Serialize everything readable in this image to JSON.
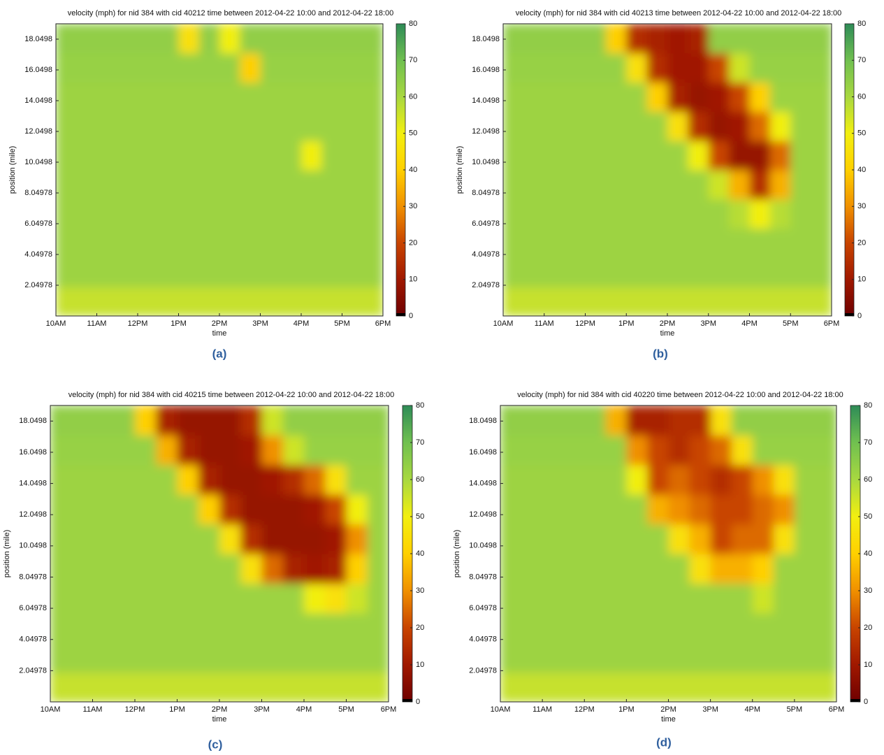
{
  "chart_data": [
    {
      "type": "heatmap",
      "title": "velocity (mph) for nid 384 with cid 40212 time between 2012-04-22 10:00 and 2012-04-22 18:00",
      "xlabel": "time",
      "ylabel": "position (mile)",
      "caption": "(a)",
      "xlim": [
        10,
        18
      ],
      "xticks": [
        {
          "value": 10,
          "label": "10AM"
        },
        {
          "value": 11,
          "label": "11AM"
        },
        {
          "value": 12,
          "label": "12PM"
        },
        {
          "value": 13,
          "label": "1PM"
        },
        {
          "value": 14,
          "label": "2PM"
        },
        {
          "value": 15,
          "label": "3PM"
        },
        {
          "value": 16,
          "label": "4PM"
        },
        {
          "value": 17,
          "label": "5PM"
        },
        {
          "value": 18,
          "label": "6PM"
        }
      ],
      "ylim": [
        0.04978,
        19.04978
      ],
      "yticks": [
        2.04978,
        4.04978,
        6.04978,
        8.04978,
        10.0498,
        12.0498,
        14.0498,
        16.0498,
        18.0498
      ],
      "xbins": [
        10,
        10.5,
        11,
        11.5,
        12,
        12.5,
        13,
        13.5,
        14,
        14.5,
        15,
        15.5,
        16,
        16.5,
        17,
        17.5,
        18
      ],
      "ybins": [
        0.04978,
        1.94978,
        3.84978,
        5.74978,
        7.64978,
        9.54978,
        11.44978,
        13.34978,
        15.24978,
        17.14978,
        19.04978
      ],
      "values": [
        [
          56,
          56,
          56,
          56,
          56,
          56,
          56,
          56,
          56,
          56,
          56,
          56,
          56,
          56,
          56,
          56
        ],
        [
          62,
          62,
          62,
          62,
          62,
          62,
          62,
          62,
          62,
          62,
          62,
          62,
          62,
          62,
          62,
          62
        ],
        [
          62,
          62,
          62,
          62,
          62,
          62,
          62,
          62,
          62,
          62,
          62,
          62,
          62,
          62,
          62,
          62
        ],
        [
          62,
          62,
          62,
          62,
          62,
          62,
          62,
          62,
          62,
          62,
          62,
          62,
          62,
          62,
          62,
          62
        ],
        [
          62,
          62,
          62,
          62,
          62,
          62,
          62,
          62,
          62,
          62,
          62,
          62,
          62,
          62,
          62,
          62
        ],
        [
          62,
          62,
          62,
          62,
          62,
          62,
          62,
          62,
          62,
          62,
          62,
          62,
          50,
          62,
          62,
          62
        ],
        [
          62,
          62,
          62,
          62,
          62,
          62,
          62,
          62,
          62,
          62,
          62,
          62,
          62,
          62,
          62,
          62
        ],
        [
          62,
          62,
          62,
          62,
          62,
          62,
          62,
          62,
          62,
          62,
          62,
          62,
          62,
          62,
          62,
          62
        ],
        [
          63,
          63,
          63,
          63,
          63,
          63,
          63,
          63,
          63,
          40,
          63,
          63,
          63,
          63,
          63,
          63
        ],
        [
          64,
          64,
          64,
          64,
          64,
          64,
          45,
          64,
          50,
          64,
          64,
          64,
          64,
          64,
          64,
          64
        ]
      ],
      "clim": [
        0,
        80
      ],
      "cticks": [
        0,
        10,
        20,
        30,
        40,
        50,
        60,
        70,
        80
      ],
      "colormap": [
        "#6e0000",
        "#a01800",
        "#c84400",
        "#f09000",
        "#ffd000",
        "#f2ef10",
        "#a8d840",
        "#70c050",
        "#2e8b57"
      ]
    },
    {
      "type": "heatmap",
      "title": "velocity (mph) for nid 384 with cid 40213 time between 2012-04-22 10:00 and 2012-04-22 18:00",
      "xlabel": "time",
      "ylabel": "position (mile)",
      "caption": "(b)",
      "xlim": [
        10,
        18
      ],
      "xticks": [
        {
          "value": 10,
          "label": "10AM"
        },
        {
          "value": 11,
          "label": "11AM"
        },
        {
          "value": 12,
          "label": "12PM"
        },
        {
          "value": 13,
          "label": "1PM"
        },
        {
          "value": 14,
          "label": "2PM"
        },
        {
          "value": 15,
          "label": "3PM"
        },
        {
          "value": 16,
          "label": "4PM"
        },
        {
          "value": 17,
          "label": "5PM"
        },
        {
          "value": 18,
          "label": "6PM"
        }
      ],
      "ylim": [
        0.04978,
        19.04978
      ],
      "yticks": [
        2.04978,
        4.04978,
        6.04978,
        8.04978,
        10.0498,
        12.0498,
        14.0498,
        16.0498,
        18.0498
      ],
      "xbins": [
        10,
        10.5,
        11,
        11.5,
        12,
        12.5,
        13,
        13.5,
        14,
        14.5,
        15,
        15.5,
        16,
        16.5,
        17,
        17.5,
        18
      ],
      "ybins": [
        0.04978,
        1.94978,
        3.84978,
        5.74978,
        7.64978,
        9.54978,
        11.44978,
        13.34978,
        15.24978,
        17.14978,
        19.04978
      ],
      "values": [
        [
          56,
          56,
          56,
          56,
          56,
          56,
          56,
          56,
          56,
          56,
          56,
          56,
          56,
          56,
          56,
          56
        ],
        [
          62,
          62,
          62,
          62,
          62,
          62,
          62,
          62,
          62,
          62,
          62,
          62,
          62,
          62,
          62,
          62
        ],
        [
          62,
          62,
          62,
          62,
          62,
          62,
          62,
          62,
          62,
          62,
          62,
          62,
          62,
          62,
          62,
          62
        ],
        [
          62,
          62,
          62,
          62,
          62,
          62,
          62,
          62,
          62,
          62,
          62,
          58,
          50,
          58,
          62,
          62
        ],
        [
          62,
          62,
          62,
          62,
          62,
          62,
          62,
          62,
          62,
          62,
          55,
          35,
          15,
          35,
          62,
          62
        ],
        [
          62,
          62,
          62,
          62,
          62,
          62,
          62,
          62,
          62,
          50,
          20,
          8,
          8,
          25,
          62,
          62
        ],
        [
          62,
          62,
          62,
          62,
          62,
          62,
          62,
          62,
          45,
          15,
          8,
          10,
          25,
          50,
          62,
          62
        ],
        [
          62,
          62,
          62,
          62,
          62,
          62,
          62,
          40,
          12,
          8,
          10,
          20,
          40,
          62,
          62,
          62
        ],
        [
          63,
          63,
          63,
          63,
          63,
          63,
          45,
          15,
          10,
          10,
          20,
          55,
          63,
          63,
          63,
          63
        ],
        [
          64,
          64,
          64,
          64,
          64,
          40,
          15,
          12,
          10,
          12,
          64,
          64,
          64,
          64,
          64,
          64
        ]
      ],
      "clim": [
        0,
        80
      ],
      "cticks": [
        0,
        10,
        20,
        30,
        40,
        50,
        60,
        70,
        80
      ],
      "colormap": [
        "#6e0000",
        "#a01800",
        "#c84400",
        "#f09000",
        "#ffd000",
        "#f2ef10",
        "#a8d840",
        "#70c050",
        "#2e8b57"
      ]
    },
    {
      "type": "heatmap",
      "title": "velocity (mph) for nid 384 with cid 40215 time between 2012-04-22 10:00 and 2012-04-22 18:00",
      "xlabel": "time",
      "ylabel": "position (mile)",
      "caption": "(c)",
      "xlim": [
        10,
        18
      ],
      "xticks": [
        {
          "value": 10,
          "label": "10AM"
        },
        {
          "value": 11,
          "label": "11AM"
        },
        {
          "value": 12,
          "label": "12PM"
        },
        {
          "value": 13,
          "label": "1PM"
        },
        {
          "value": 14,
          "label": "2PM"
        },
        {
          "value": 15,
          "label": "3PM"
        },
        {
          "value": 16,
          "label": "4PM"
        },
        {
          "value": 17,
          "label": "5PM"
        },
        {
          "value": 18,
          "label": "6PM"
        }
      ],
      "ylim": [
        0.04978,
        19.04978
      ],
      "yticks": [
        2.04978,
        4.04978,
        6.04978,
        8.04978,
        10.0498,
        12.0498,
        14.0498,
        16.0498,
        18.0498
      ],
      "xbins": [
        10,
        10.5,
        11,
        11.5,
        12,
        12.5,
        13,
        13.5,
        14,
        14.5,
        15,
        15.5,
        16,
        16.5,
        17,
        17.5,
        18
      ],
      "ybins": [
        0.04978,
        1.94978,
        3.84978,
        5.74978,
        7.64978,
        9.54978,
        11.44978,
        13.34978,
        15.24978,
        17.14978,
        19.04978
      ],
      "values": [
        [
          56,
          56,
          56,
          56,
          56,
          56,
          56,
          56,
          56,
          56,
          56,
          56,
          56,
          56,
          56,
          56
        ],
        [
          62,
          62,
          62,
          62,
          62,
          62,
          62,
          62,
          62,
          62,
          62,
          62,
          62,
          62,
          62,
          62
        ],
        [
          62,
          62,
          62,
          62,
          62,
          62,
          62,
          62,
          62,
          62,
          62,
          62,
          62,
          62,
          62,
          62
        ],
        [
          62,
          62,
          62,
          62,
          62,
          62,
          62,
          62,
          62,
          62,
          62,
          62,
          50,
          45,
          55,
          62
        ],
        [
          62,
          62,
          62,
          62,
          62,
          62,
          62,
          62,
          62,
          45,
          25,
          12,
          10,
          12,
          40,
          62
        ],
        [
          62,
          62,
          62,
          62,
          62,
          62,
          62,
          62,
          45,
          15,
          8,
          8,
          8,
          10,
          30,
          62
        ],
        [
          62,
          62,
          62,
          62,
          62,
          62,
          62,
          40,
          15,
          8,
          8,
          8,
          10,
          20,
          50,
          62
        ],
        [
          62,
          62,
          62,
          62,
          62,
          62,
          40,
          12,
          8,
          8,
          10,
          15,
          25,
          45,
          62,
          62
        ],
        [
          63,
          63,
          63,
          63,
          63,
          35,
          12,
          8,
          8,
          10,
          30,
          55,
          63,
          63,
          63,
          63
        ],
        [
          64,
          64,
          64,
          64,
          40,
          12,
          8,
          8,
          8,
          15,
          55,
          64,
          64,
          64,
          64,
          64
        ]
      ],
      "clim": [
        0,
        80
      ],
      "cticks": [
        0,
        10,
        20,
        30,
        40,
        50,
        60,
        70,
        80
      ],
      "colormap": [
        "#6e0000",
        "#a01800",
        "#c84400",
        "#f09000",
        "#ffd000",
        "#f2ef10",
        "#a8d840",
        "#70c050",
        "#2e8b57"
      ]
    },
    {
      "type": "heatmap",
      "title": "velocity (mph) for nid 384 with cid 40220 time between 2012-04-22 10:00 and 2012-04-22 18:00",
      "xlabel": "time",
      "ylabel": "position (mile)",
      "caption": "(d)",
      "xlim": [
        10,
        18
      ],
      "xticks": [
        {
          "value": 10,
          "label": "10AM"
        },
        {
          "value": 11,
          "label": "11AM"
        },
        {
          "value": 12,
          "label": "12PM"
        },
        {
          "value": 13,
          "label": "1PM"
        },
        {
          "value": 14,
          "label": "2PM"
        },
        {
          "value": 15,
          "label": "3PM"
        },
        {
          "value": 16,
          "label": "4PM"
        },
        {
          "value": 17,
          "label": "5PM"
        },
        {
          "value": 18,
          "label": "6PM"
        }
      ],
      "ylim": [
        0.04978,
        19.04978
      ],
      "yticks": [
        2.04978,
        4.04978,
        6.04978,
        8.04978,
        10.0498,
        12.0498,
        14.0498,
        16.0498,
        18.0498
      ],
      "xbins": [
        10,
        10.5,
        11,
        11.5,
        12,
        12.5,
        13,
        13.5,
        14,
        14.5,
        15,
        15.5,
        16,
        16.5,
        17,
        17.5,
        18
      ],
      "ybins": [
        0.04978,
        1.94978,
        3.84978,
        5.74978,
        7.64978,
        9.54978,
        11.44978,
        13.34978,
        15.24978,
        17.14978,
        19.04978
      ],
      "values": [
        [
          56,
          56,
          56,
          56,
          56,
          56,
          56,
          56,
          56,
          56,
          56,
          56,
          56,
          56,
          56,
          56
        ],
        [
          62,
          62,
          62,
          62,
          62,
          62,
          62,
          62,
          62,
          62,
          62,
          62,
          62,
          62,
          62,
          62
        ],
        [
          62,
          62,
          62,
          62,
          62,
          62,
          62,
          62,
          62,
          62,
          62,
          62,
          62,
          62,
          62,
          62
        ],
        [
          62,
          62,
          62,
          62,
          62,
          62,
          62,
          62,
          62,
          62,
          62,
          62,
          55,
          62,
          62,
          62
        ],
        [
          62,
          62,
          62,
          62,
          62,
          62,
          62,
          62,
          62,
          45,
          35,
          35,
          40,
          62,
          62,
          62
        ],
        [
          62,
          62,
          62,
          62,
          62,
          62,
          62,
          62,
          45,
          35,
          20,
          25,
          25,
          45,
          62,
          62
        ],
        [
          62,
          62,
          62,
          62,
          62,
          62,
          62,
          35,
          30,
          25,
          20,
          20,
          25,
          30,
          62,
          62
        ],
        [
          62,
          62,
          62,
          62,
          62,
          62,
          50,
          20,
          25,
          20,
          15,
          20,
          30,
          45,
          62,
          62
        ],
        [
          63,
          63,
          63,
          63,
          63,
          63,
          30,
          20,
          15,
          20,
          25,
          45,
          63,
          63,
          63,
          63
        ],
        [
          64,
          64,
          64,
          64,
          64,
          35,
          12,
          12,
          15,
          15,
          45,
          64,
          64,
          64,
          64,
          64
        ]
      ],
      "clim": [
        0,
        80
      ],
      "cticks": [
        0,
        10,
        20,
        30,
        40,
        50,
        60,
        70,
        80
      ],
      "colormap": [
        "#6e0000",
        "#a01800",
        "#c84400",
        "#f09000",
        "#ffd000",
        "#f2ef10",
        "#a8d840",
        "#70c050",
        "#2e8b57"
      ]
    }
  ]
}
